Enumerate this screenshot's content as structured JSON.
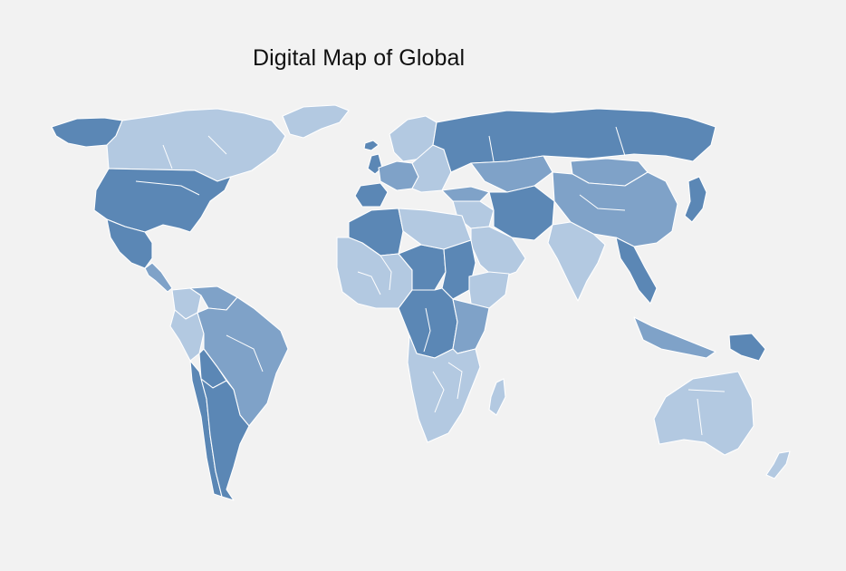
{
  "title": "Digital Map of Global",
  "colors": {
    "background": "#f2f2f2",
    "dark": "#5b87b5",
    "medium": "#7fa2c8",
    "light": "#b3c9e1",
    "border": "#ffffff"
  },
  "regions": [
    {
      "name": "Alaska",
      "level": "dark"
    },
    {
      "name": "Canada",
      "level": "light"
    },
    {
      "name": "Greenland",
      "level": "light"
    },
    {
      "name": "United States",
      "level": "dark"
    },
    {
      "name": "Mexico",
      "level": "dark"
    },
    {
      "name": "Central America",
      "level": "medium"
    },
    {
      "name": "Colombia",
      "level": "light"
    },
    {
      "name": "Venezuela",
      "level": "medium"
    },
    {
      "name": "Peru",
      "level": "light"
    },
    {
      "name": "Brazil",
      "level": "medium"
    },
    {
      "name": "Bolivia",
      "level": "dark"
    },
    {
      "name": "Chile",
      "level": "dark"
    },
    {
      "name": "Argentina",
      "level": "dark"
    },
    {
      "name": "Iceland",
      "level": "dark"
    },
    {
      "name": "United Kingdom",
      "level": "dark"
    },
    {
      "name": "Scandinavia",
      "level": "light"
    },
    {
      "name": "Western Europe",
      "level": "medium"
    },
    {
      "name": "Iberia",
      "level": "dark"
    },
    {
      "name": "Eastern Europe",
      "level": "light"
    },
    {
      "name": "Russia",
      "level": "dark"
    },
    {
      "name": "Kazakhstan",
      "level": "medium"
    },
    {
      "name": "Mongolia",
      "level": "medium"
    },
    {
      "name": "China",
      "level": "medium"
    },
    {
      "name": "Turkey",
      "level": "medium"
    },
    {
      "name": "Middle East",
      "level": "light"
    },
    {
      "name": "Iran",
      "level": "dark"
    },
    {
      "name": "Arabian Peninsula",
      "level": "light"
    },
    {
      "name": "India",
      "level": "light"
    },
    {
      "name": "Southeast Asia",
      "level": "dark"
    },
    {
      "name": "Japan",
      "level": "dark"
    },
    {
      "name": "Indonesia",
      "level": "medium"
    },
    {
      "name": "Papua New Guinea",
      "level": "dark"
    },
    {
      "name": "Australia",
      "level": "light"
    },
    {
      "name": "New Zealand",
      "level": "light"
    },
    {
      "name": "Northwest Africa",
      "level": "dark"
    },
    {
      "name": "West Africa",
      "level": "light"
    },
    {
      "name": "Sahel",
      "level": "dark"
    },
    {
      "name": "Egypt and Libya",
      "level": "light"
    },
    {
      "name": "Sudan",
      "level": "dark"
    },
    {
      "name": "Horn of Africa",
      "level": "light"
    },
    {
      "name": "Central Africa",
      "level": "dark"
    },
    {
      "name": "East Africa",
      "level": "medium"
    },
    {
      "name": "Southern Africa",
      "level": "light"
    },
    {
      "name": "Madagascar",
      "level": "light"
    }
  ]
}
